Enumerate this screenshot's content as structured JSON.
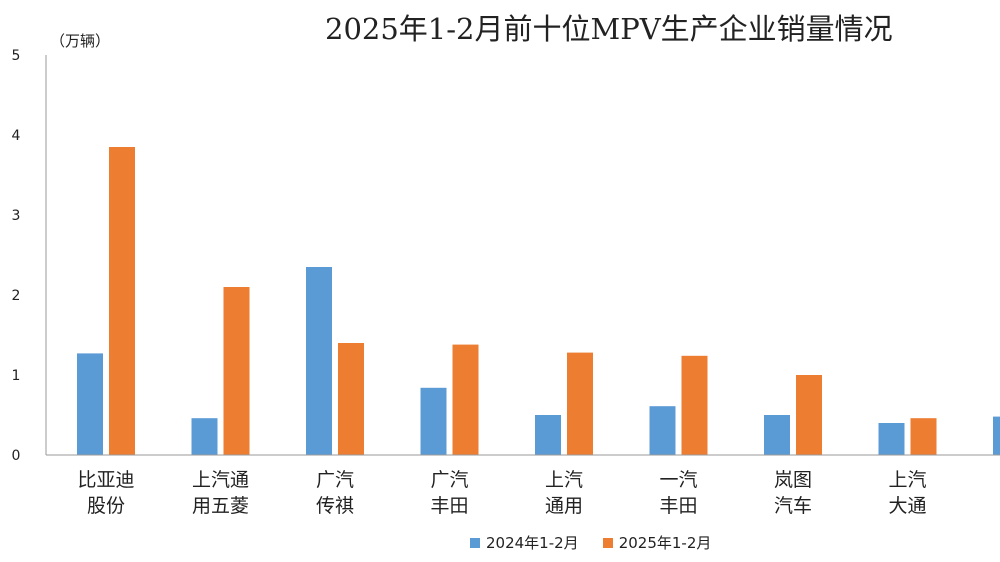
{
  "chart_data": {
    "type": "bar",
    "title": "2025年1-2月前十位MPV生产企业销量情况",
    "unit_label": "（万辆）",
    "ylim": [
      0,
      5
    ],
    "yticks": [
      0,
      1,
      2,
      3,
      4,
      5
    ],
    "grid": false,
    "legend_position": "bottom",
    "categories": [
      [
        "比亚迪",
        "股份"
      ],
      [
        "上汽通",
        "用五菱"
      ],
      [
        "广汽",
        "传祺"
      ],
      [
        "广汽",
        "丰田"
      ],
      [
        "上汽",
        "通用"
      ],
      [
        "一汽",
        "丰田"
      ],
      [
        "岚图",
        "汽车"
      ],
      [
        "上汽",
        "大通"
      ],
      [
        "",
        ""
      ]
    ],
    "series": [
      {
        "name": "2024年1-2月",
        "color": "#5B9BD5",
        "values": [
          1.27,
          0.46,
          2.35,
          0.84,
          0.5,
          0.61,
          0.5,
          0.4,
          0.48
        ]
      },
      {
        "name": "2025年1-2月",
        "color": "#ED7D31",
        "values": [
          3.85,
          2.1,
          1.4,
          1.38,
          1.28,
          1.24,
          1.0,
          0.46,
          null
        ]
      }
    ]
  }
}
